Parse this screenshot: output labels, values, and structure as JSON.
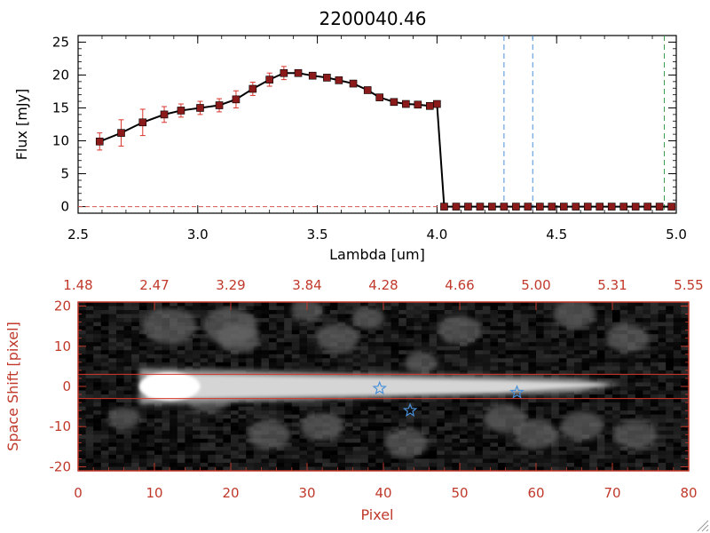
{
  "chart_data": [
    {
      "type": "line",
      "title": "2200040.46",
      "xlabel": "Lambda [um]",
      "ylabel": "Flux [mJy]",
      "xlim": [
        2.5,
        5.0
      ],
      "ylim": [
        -1,
        26
      ],
      "x_ticks": [
        "2.5",
        "3.0",
        "3.5",
        "4.0",
        "4.5",
        "5.0"
      ],
      "y_ticks": [
        "0",
        "5",
        "10",
        "15",
        "20",
        "25"
      ],
      "series": [
        {
          "x": [
            2.59,
            2.68,
            2.77,
            2.86,
            2.93,
            3.01,
            3.09,
            3.16,
            3.23,
            3.3,
            3.36,
            3.42,
            3.48,
            3.54,
            3.59,
            3.65,
            3.71,
            3.76,
            3.82,
            3.87,
            3.92,
            3.97,
            4.0,
            4.03,
            4.08,
            4.13,
            4.18,
            4.23,
            4.28,
            4.33,
            4.38,
            4.43,
            4.48,
            4.53,
            4.58,
            4.63,
            4.68,
            4.73,
            4.78,
            4.83,
            4.88,
            4.93,
            4.98
          ],
          "y": [
            9.9,
            11.2,
            12.8,
            14.0,
            14.6,
            15.0,
            15.4,
            16.3,
            17.9,
            19.3,
            20.3,
            20.3,
            19.9,
            19.6,
            19.2,
            18.7,
            17.7,
            16.6,
            15.9,
            15.6,
            15.5,
            15.3,
            15.6,
            0,
            0,
            0,
            0,
            0,
            0,
            0,
            0,
            0,
            0,
            0,
            0,
            0,
            0,
            0,
            0,
            0,
            0,
            0,
            0
          ],
          "err": [
            1.3,
            2.0,
            2.0,
            1.2,
            1.0,
            1.0,
            1.0,
            1.3,
            1.0,
            1.0,
            1.0,
            0.5,
            0.3,
            0.3,
            0.3,
            0.3,
            0.3,
            0.3,
            0.3,
            0.3,
            0.3,
            0.3,
            0.3,
            0,
            0,
            0,
            0,
            0,
            0,
            0,
            0,
            0,
            0,
            0,
            0,
            0,
            0,
            0,
            0,
            0,
            0,
            0,
            0
          ]
        }
      ],
      "vlines": [
        {
          "x": 4.28,
          "color": "#4a90d9"
        },
        {
          "x": 4.4,
          "color": "#4a90d9"
        },
        {
          "x": 4.95,
          "color": "#3a9a4a"
        }
      ],
      "zero_line_color": "#d9534f",
      "marker_color": "#8b1a1a",
      "errorbar_color": "#d9362b",
      "grid": false
    },
    {
      "type": "heatmap",
      "xlabel": "Pixel",
      "ylabel": "Space Shift [pixel]",
      "xlim": [
        0,
        80
      ],
      "ylim": [
        -21,
        21
      ],
      "x_ticks": [
        "0",
        "10",
        "20",
        "30",
        "40",
        "50",
        "60",
        "70",
        "80"
      ],
      "y_ticks": [
        "20",
        "10",
        "0",
        "-10",
        "-20"
      ],
      "top_axis_ticks": [
        "1.48",
        "2.47",
        "3.29",
        "3.84",
        "4.28",
        "4.66",
        "5.00",
        "5.31",
        "5.55"
      ],
      "aperture_lines_y": [
        3,
        -3
      ],
      "stars": [
        {
          "x": 39.5,
          "y": -0.5
        },
        {
          "x": 43.5,
          "y": -6
        },
        {
          "x": 57.5,
          "y": -1.5
        }
      ],
      "axis_color": "#c0392b",
      "star_color": "#4a90d9",
      "grid": false
    }
  ]
}
